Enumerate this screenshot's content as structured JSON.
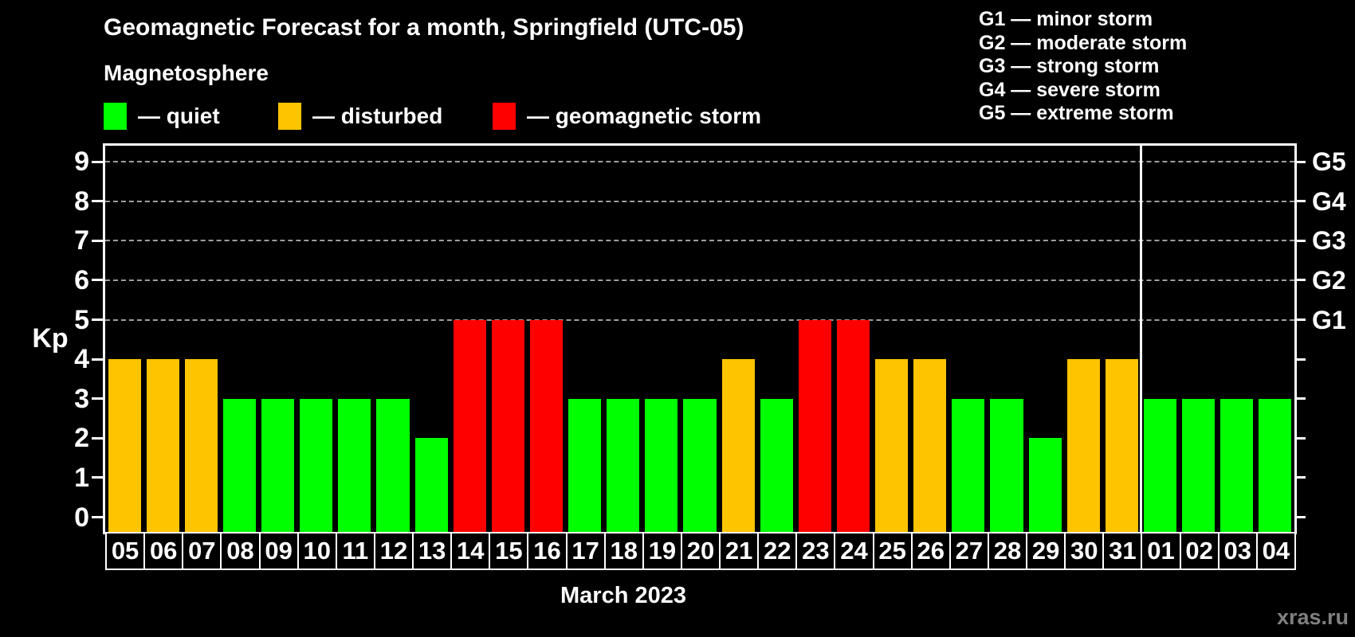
{
  "header": {
    "title": "Geomagnetic Forecast for a month, Springfield (UTC-05)",
    "subtitle": "Magnetosphere"
  },
  "legend": {
    "separator": "—",
    "items": [
      {
        "label": "quiet",
        "status": "quiet"
      },
      {
        "label": "disturbed",
        "status": "disturbed"
      },
      {
        "label": "geomagnetic storm",
        "status": "storm"
      }
    ]
  },
  "storm_scale": {
    "separator": "—",
    "items": [
      {
        "code": "G1",
        "label": "minor storm",
        "kp": 5
      },
      {
        "code": "G2",
        "label": "moderate storm",
        "kp": 6
      },
      {
        "code": "G3",
        "label": "strong storm",
        "kp": 7
      },
      {
        "code": "G4",
        "label": "severe storm",
        "kp": 8
      },
      {
        "code": "G5",
        "label": "extreme storm",
        "kp": 9
      }
    ]
  },
  "chart_data": {
    "type": "bar",
    "title": "Geomagnetic Forecast for a month, Springfield (UTC-05)",
    "xlabel": "March 2023",
    "ylabel": "Kp",
    "ylim": [
      0,
      9
    ],
    "yticks": [
      0,
      1,
      2,
      3,
      4,
      5,
      6,
      7,
      8,
      9
    ],
    "grid_kp_levels": [
      5,
      6,
      7,
      8,
      9
    ],
    "legend_position": "top",
    "categories": [
      "05",
      "06",
      "07",
      "08",
      "09",
      "10",
      "11",
      "12",
      "13",
      "14",
      "15",
      "16",
      "17",
      "18",
      "19",
      "20",
      "21",
      "22",
      "23",
      "24",
      "25",
      "26",
      "27",
      "28",
      "29",
      "30",
      "31",
      "01",
      "02",
      "03",
      "04"
    ],
    "values": [
      4,
      4,
      4,
      3,
      3,
      3,
      3,
      3,
      2,
      5,
      5,
      5,
      3,
      3,
      3,
      3,
      4,
      3,
      5,
      5,
      4,
      4,
      3,
      3,
      2,
      4,
      4,
      3,
      3,
      3,
      3
    ],
    "statuses": [
      "disturbed",
      "disturbed",
      "disturbed",
      "quiet",
      "quiet",
      "quiet",
      "quiet",
      "quiet",
      "quiet",
      "storm",
      "storm",
      "storm",
      "quiet",
      "quiet",
      "quiet",
      "quiet",
      "disturbed",
      "quiet",
      "storm",
      "storm",
      "disturbed",
      "disturbed",
      "quiet",
      "quiet",
      "quiet",
      "disturbed",
      "disturbed",
      "quiet",
      "quiet",
      "quiet",
      "quiet"
    ],
    "month_boundary_day": "01"
  },
  "colors": {
    "quiet": "#00FF00",
    "disturbed": "#FFC400",
    "storm": "#FF0000",
    "background": "#000000",
    "axis": "#FFFFFF",
    "grid": "#9E9E9E",
    "text": "#FFFFFF",
    "watermark": "#808080"
  },
  "watermark": "xras.ru"
}
